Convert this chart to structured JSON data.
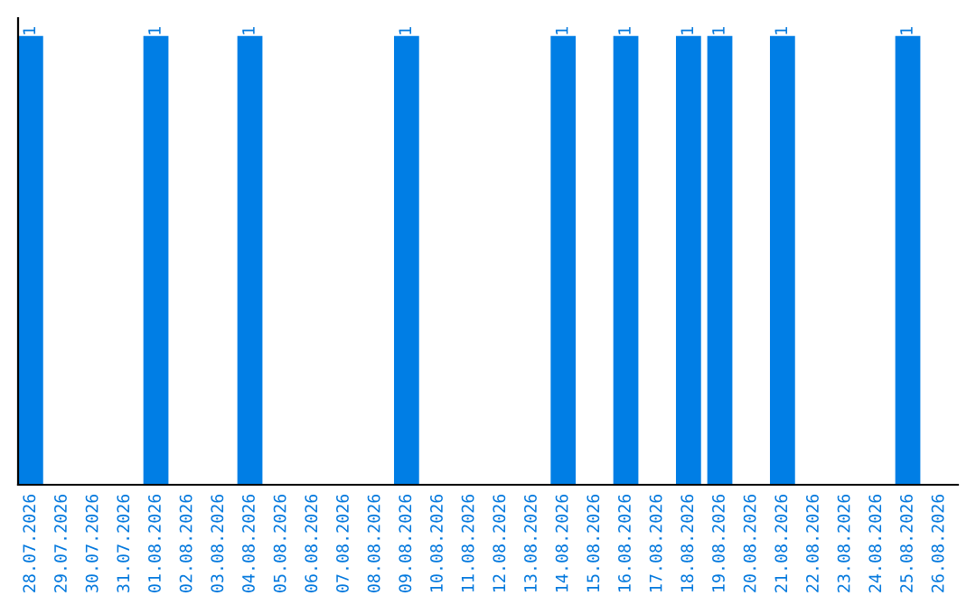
{
  "chart_data": {
    "type": "bar",
    "color": "#007ee5",
    "categories": [
      "28.07.2026",
      "29.07.2026",
      "30.07.2026",
      "31.07.2026",
      "01.08.2026",
      "02.08.2026",
      "03.08.2026",
      "04.08.2026",
      "05.08.2026",
      "06.08.2026",
      "07.08.2026",
      "08.08.2026",
      "09.08.2026",
      "10.08.2026",
      "11.08.2026",
      "12.08.2026",
      "13.08.2026",
      "14.08.2026",
      "15.08.2026",
      "16.08.2026",
      "17.08.2026",
      "18.08.2026",
      "19.08.2026",
      "20.08.2026",
      "21.08.2026",
      "22.08.2026",
      "23.08.2026",
      "24.08.2026",
      "25.08.2026",
      "26.08.2026"
    ],
    "values": [
      1,
      0,
      0,
      0,
      1,
      0,
      0,
      1,
      0,
      0,
      0,
      0,
      1,
      0,
      0,
      0,
      0,
      1,
      0,
      1,
      0,
      1,
      1,
      0,
      1,
      0,
      0,
      0,
      1,
      0
    ],
    "value_labels": [
      "1",
      null,
      null,
      null,
      "1",
      null,
      null,
      "1",
      null,
      null,
      null,
      null,
      "1",
      null,
      null,
      null,
      null,
      "1",
      null,
      "1",
      null,
      "1",
      "1",
      null,
      "1",
      null,
      null,
      null,
      "1",
      null
    ],
    "grid": false,
    "legend": false
  }
}
